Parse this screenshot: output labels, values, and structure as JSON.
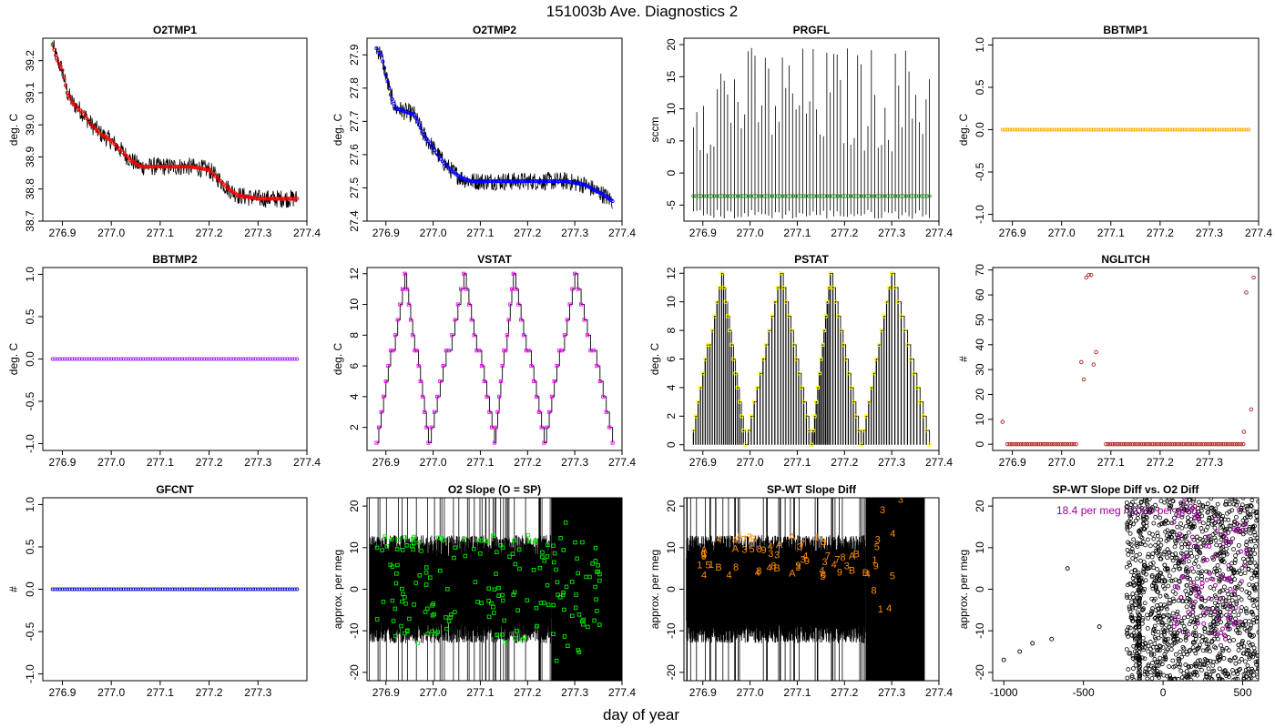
{
  "figure": {
    "title": "151003b   Ave. Diagnostics 2",
    "xlabel": "day of year"
  },
  "chart_data": [
    {
      "id": "o2tmp1",
      "type": "line",
      "title": "O2TMP1",
      "ylabel": "deg. C",
      "xlim": [
        276.86,
        277.4
      ],
      "ylim": [
        38.7,
        39.27
      ],
      "xticks": [
        276.9,
        277.0,
        277.1,
        277.2,
        277.3,
        277.4
      ],
      "xtick_labels": [
        "276.9",
        "277.0",
        "277.1",
        "277.2",
        "277.3",
        "277.4"
      ],
      "yticks": [
        38.7,
        38.8,
        38.9,
        39.0,
        39.1,
        39.2
      ],
      "ytick_labels": [
        "38.7",
        "38.8",
        "38.9",
        "39.0",
        "39.1",
        "39.2"
      ],
      "marker_color": "#ff0000",
      "marker": "circle",
      "x": [
        276.88,
        276.89,
        276.9,
        276.91,
        276.92,
        276.94,
        276.96,
        276.98,
        277.0,
        277.02,
        277.04,
        277.06,
        277.08,
        277.12,
        277.16,
        277.2,
        277.22,
        277.24,
        277.26,
        277.3,
        277.34,
        277.38
      ],
      "y": [
        39.25,
        39.2,
        39.17,
        39.1,
        39.07,
        39.04,
        39.0,
        38.97,
        38.95,
        38.92,
        38.89,
        38.87,
        38.87,
        38.87,
        38.87,
        38.86,
        38.83,
        38.8,
        38.78,
        38.77,
        38.77,
        38.77
      ]
    },
    {
      "id": "o2tmp2",
      "type": "line",
      "title": "O2TMP2",
      "ylabel": "deg. C",
      "xlim": [
        276.86,
        277.4
      ],
      "ylim": [
        27.4,
        27.95
      ],
      "xticks": [
        276.9,
        277.0,
        277.1,
        277.2,
        277.3,
        277.4
      ],
      "xtick_labels": [
        "276.9",
        "277.0",
        "277.1",
        "277.2",
        "277.3",
        "277.4"
      ],
      "yticks": [
        27.4,
        27.5,
        27.6,
        27.7,
        27.8,
        27.9
      ],
      "ytick_labels": [
        "27.4",
        "27.5",
        "27.6",
        "27.7",
        "27.8",
        "27.9"
      ],
      "marker_color": "#0000ff",
      "marker": "circle",
      "x": [
        276.88,
        276.89,
        276.9,
        276.91,
        276.92,
        276.94,
        276.96,
        276.98,
        277.0,
        277.02,
        277.04,
        277.06,
        277.08,
        277.12,
        277.16,
        277.2,
        277.24,
        277.28,
        277.32,
        277.36,
        277.38
      ],
      "y": [
        27.92,
        27.9,
        27.84,
        27.78,
        27.74,
        27.73,
        27.72,
        27.66,
        27.62,
        27.58,
        27.55,
        27.53,
        27.52,
        27.52,
        27.52,
        27.52,
        27.52,
        27.52,
        27.51,
        27.48,
        27.46
      ]
    },
    {
      "id": "prgfl",
      "type": "line",
      "title": "PRGFL",
      "ylabel": "sccm",
      "xlim": [
        276.86,
        277.4
      ],
      "ylim": [
        -7.5,
        21
      ],
      "xticks": [
        276.9,
        277.0,
        277.1,
        277.2,
        277.3,
        277.4
      ],
      "xtick_labels": [
        "276.9",
        "277.0",
        "277.1",
        "277.2",
        "277.3",
        "277.4"
      ],
      "yticks": [
        -5,
        0,
        5,
        10,
        15,
        20
      ],
      "ytick_labels": [
        "-5",
        "0",
        "5",
        "10",
        "15",
        "20"
      ],
      "marker_color": "#228b22",
      "marker": "circle",
      "baseline": -3.6,
      "spike_min": 3,
      "spike_max": 20,
      "trough_min": -7.2,
      "x": [
        276.88,
        277.38
      ],
      "y": [
        -3.6,
        -3.6
      ]
    },
    {
      "id": "bbtmp1",
      "type": "scatter",
      "title": "BBTMP1",
      "ylabel": "deg. C",
      "xlim": [
        276.86,
        277.4
      ],
      "ylim": [
        -1.08,
        1.08
      ],
      "xticks": [
        276.9,
        277.0,
        277.1,
        277.2,
        277.3,
        277.4
      ],
      "xtick_labels": [
        "276.9",
        "277.0",
        "277.1",
        "277.2",
        "277.3",
        "277.4"
      ],
      "yticks": [
        -1.0,
        -0.5,
        0.0,
        0.5,
        1.0
      ],
      "ytick_labels": [
        "-1.0",
        "-0.5",
        "0.0",
        "0.5",
        "1.0"
      ],
      "marker_color": "#ffa500",
      "marker": "circle",
      "x": [
        276.88,
        277.38
      ],
      "y": [
        0,
        0
      ]
    },
    {
      "id": "bbtmp2",
      "type": "scatter",
      "title": "BBTMP2",
      "ylabel": "deg. C",
      "xlim": [
        276.86,
        277.4
      ],
      "ylim": [
        -1.08,
        1.08
      ],
      "xticks": [
        276.9,
        277.0,
        277.1,
        277.2,
        277.3,
        277.4
      ],
      "xtick_labels": [
        "276.9",
        "277.0",
        "277.1",
        "277.2",
        "277.3",
        "277.4"
      ],
      "yticks": [
        -1.0,
        -0.5,
        0.0,
        0.5,
        1.0
      ],
      "ytick_labels": [
        "-1.0",
        "-0.5",
        "0.0",
        "0.5",
        "1.0"
      ],
      "marker_color": "#a020f0",
      "marker": "circle",
      "x": [
        276.88,
        277.38
      ],
      "y": [
        0,
        0
      ]
    },
    {
      "id": "vstat",
      "type": "line",
      "title": "VSTAT",
      "ylabel": "deg. C",
      "xlim": [
        276.86,
        277.4
      ],
      "ylim": [
        0.5,
        12.4
      ],
      "xticks": [
        276.9,
        277.0,
        277.1,
        277.2,
        277.3,
        277.4
      ],
      "xtick_labels": [
        "276.9",
        "277.0",
        "277.1",
        "277.2",
        "277.3",
        "277.4"
      ],
      "yticks": [
        2,
        4,
        6,
        8,
        10,
        12
      ],
      "ytick_labels": [
        "2",
        "4",
        "6",
        "8",
        "10",
        "12"
      ],
      "marker_color": "#ff00ff",
      "marker": "square",
      "x": [
        276.88,
        276.94,
        276.99,
        277.065,
        277.13,
        277.17,
        277.235,
        277.3,
        277.38
      ],
      "y": [
        1,
        12,
        1,
        12,
        1,
        12,
        1,
        12,
        1
      ]
    },
    {
      "id": "pstat",
      "type": "bar",
      "title": "PSTAT",
      "ylabel": "deg. C",
      "xlim": [
        276.86,
        277.4
      ],
      "ylim": [
        -0.4,
        12.4
      ],
      "xticks": [
        276.9,
        277.0,
        277.1,
        277.2,
        277.3,
        277.4
      ],
      "xtick_labels": [
        "276.9",
        "277.0",
        "277.1",
        "277.2",
        "277.3",
        "277.4"
      ],
      "yticks": [
        0,
        2,
        4,
        6,
        8,
        10,
        12
      ],
      "ytick_labels": [
        "0",
        "2",
        "4",
        "6",
        "8",
        "10",
        "12"
      ],
      "marker_color": "#ffff00",
      "marker": "square",
      "x": [
        276.88,
        276.94,
        276.99,
        277.065,
        277.13,
        277.17,
        277.235,
        277.3,
        277.38
      ],
      "y": [
        1,
        12,
        0,
        12,
        0,
        12,
        0,
        12,
        0
      ]
    },
    {
      "id": "nglitch",
      "type": "scatter",
      "title": "NGLITCH",
      "ylabel": "#",
      "xlim": [
        276.86,
        277.4
      ],
      "ylim": [
        -2.5,
        71
      ],
      "xticks": [
        276.9,
        277.0,
        277.1,
        277.2,
        277.3
      ],
      "xtick_labels": [
        "276.9",
        "277.0",
        "277.1",
        "277.2",
        "277.3"
      ],
      "yticks": [
        0,
        10,
        20,
        30,
        40,
        50,
        60,
        70
      ],
      "ytick_labels": [
        "0",
        "10",
        "20",
        "30",
        "40",
        "50",
        "60",
        "70"
      ],
      "marker_color": "#b22222",
      "marker": "circle",
      "zero_ranges": [
        [
          276.89,
          277.03
        ],
        [
          277.09,
          277.37
        ]
      ],
      "x": [
        276.88,
        277.04,
        277.045,
        277.05,
        277.055,
        277.06,
        277.065,
        277.07,
        277.37,
        277.375,
        277.385,
        277.39
      ],
      "y": [
        9,
        33,
        26,
        67,
        68,
        68,
        32,
        37,
        5,
        61,
        14,
        67
      ]
    },
    {
      "id": "gfcnt",
      "type": "scatter",
      "title": "GFCNT",
      "ylabel": "#",
      "xlim": [
        276.86,
        277.4
      ],
      "ylim": [
        -1.08,
        1.08
      ],
      "xticks": [
        276.9,
        277.0,
        277.1,
        277.2,
        277.3
      ],
      "xtick_labels": [
        "276.9",
        "277.0",
        "277.1",
        "277.2",
        "277.3"
      ],
      "yticks": [
        -1.0,
        -0.5,
        0.0,
        0.5,
        1.0
      ],
      "ytick_labels": [
        "-1.0",
        "-0.5",
        "0.0",
        "0.5",
        "1.0"
      ],
      "marker_color": "#0000cd",
      "marker": "circle",
      "x": [
        276.88,
        277.38
      ],
      "y": [
        0,
        0
      ]
    },
    {
      "id": "o2slope",
      "type": "scatter",
      "title": "O2 Slope (O = SP)",
      "ylabel": "approx. per meg",
      "xlim": [
        276.86,
        277.4
      ],
      "ylim": [
        -22,
        22
      ],
      "xticks": [
        276.9,
        277.0,
        277.1,
        277.2,
        277.3,
        277.4
      ],
      "xtick_labels": [
        "276.9",
        "277.0",
        "277.1",
        "277.2",
        "277.3",
        "277.4"
      ],
      "yticks": [
        -20,
        -10,
        0,
        10,
        20
      ],
      "ytick_labels": [
        "-20",
        "-10",
        "0",
        "10",
        "20"
      ],
      "marker_color": "#00ee00",
      "marker": "square",
      "solid_block": [
        277.25,
        277.4
      ],
      "x": [
        276.88,
        276.9,
        276.93,
        276.96,
        277.0,
        277.05,
        277.1,
        277.15,
        277.2,
        277.26,
        277.3,
        277.33,
        277.36
      ],
      "y": [
        5,
        -4,
        3,
        10,
        -5,
        6,
        -3,
        8,
        0,
        -10,
        13,
        -15,
        19
      ]
    },
    {
      "id": "spwt",
      "type": "scatter",
      "title": "SP-WT Slope Diff",
      "ylabel": "approx. per meg",
      "xlim": [
        276.86,
        277.4
      ],
      "ylim": [
        -22,
        22
      ],
      "xticks": [
        276.9,
        277.0,
        277.1,
        277.2,
        277.3,
        277.4
      ],
      "xtick_labels": [
        "276.9",
        "277.0",
        "277.1",
        "277.2",
        "277.3",
        "277.4"
      ],
      "yticks": [
        -20,
        -10,
        0,
        10,
        20
      ],
      "ytick_labels": [
        "-20",
        "-10",
        "0",
        "10",
        "20"
      ],
      "marker_color": "#ff8c00",
      "marker": "label",
      "solid_block": [
        277.245,
        277.37
      ],
      "x": [
        276.88,
        276.9,
        276.94,
        276.98,
        277.02,
        277.08,
        277.14,
        277.2,
        277.26,
        277.3,
        277.32
      ],
      "y": [
        10,
        3,
        8,
        12,
        4,
        10,
        7,
        5,
        4,
        17,
        -18
      ],
      "labels": [
        "3",
        "8",
        "4",
        "9",
        "A",
        "3",
        "4",
        "B",
        "1",
        "7",
        "5"
      ]
    },
    {
      "id": "spwt_vs_o2",
      "type": "scatter",
      "title": "SP-WT Slope Diff vs. O2 Diff",
      "ylabel": "approx. per meg",
      "annotation": "18.4 per meg / 1000 per meg",
      "xlim": [
        -1070,
        600
      ],
      "ylim": [
        -22,
        22
      ],
      "xticks": [
        -1000,
        -500,
        0,
        500
      ],
      "xtick_labels": [
        "-1000",
        "-500",
        "0",
        "500"
      ],
      "yticks": [
        -20,
        -10,
        0,
        10,
        20
      ],
      "ytick_labels": [
        "-20",
        "-10",
        "0",
        "10",
        "20"
      ],
      "marker_color": "#000000",
      "accent_color": "#990099",
      "marker": "circle",
      "x": [
        -1000,
        -900,
        -820,
        -700,
        -600,
        -400,
        -200,
        -150,
        -100,
        0,
        100,
        200,
        300,
        400,
        500
      ],
      "y": [
        -17,
        -15,
        -13,
        -12,
        5,
        -9,
        -7,
        4,
        10,
        2,
        6,
        12,
        4,
        15,
        8
      ]
    }
  ]
}
